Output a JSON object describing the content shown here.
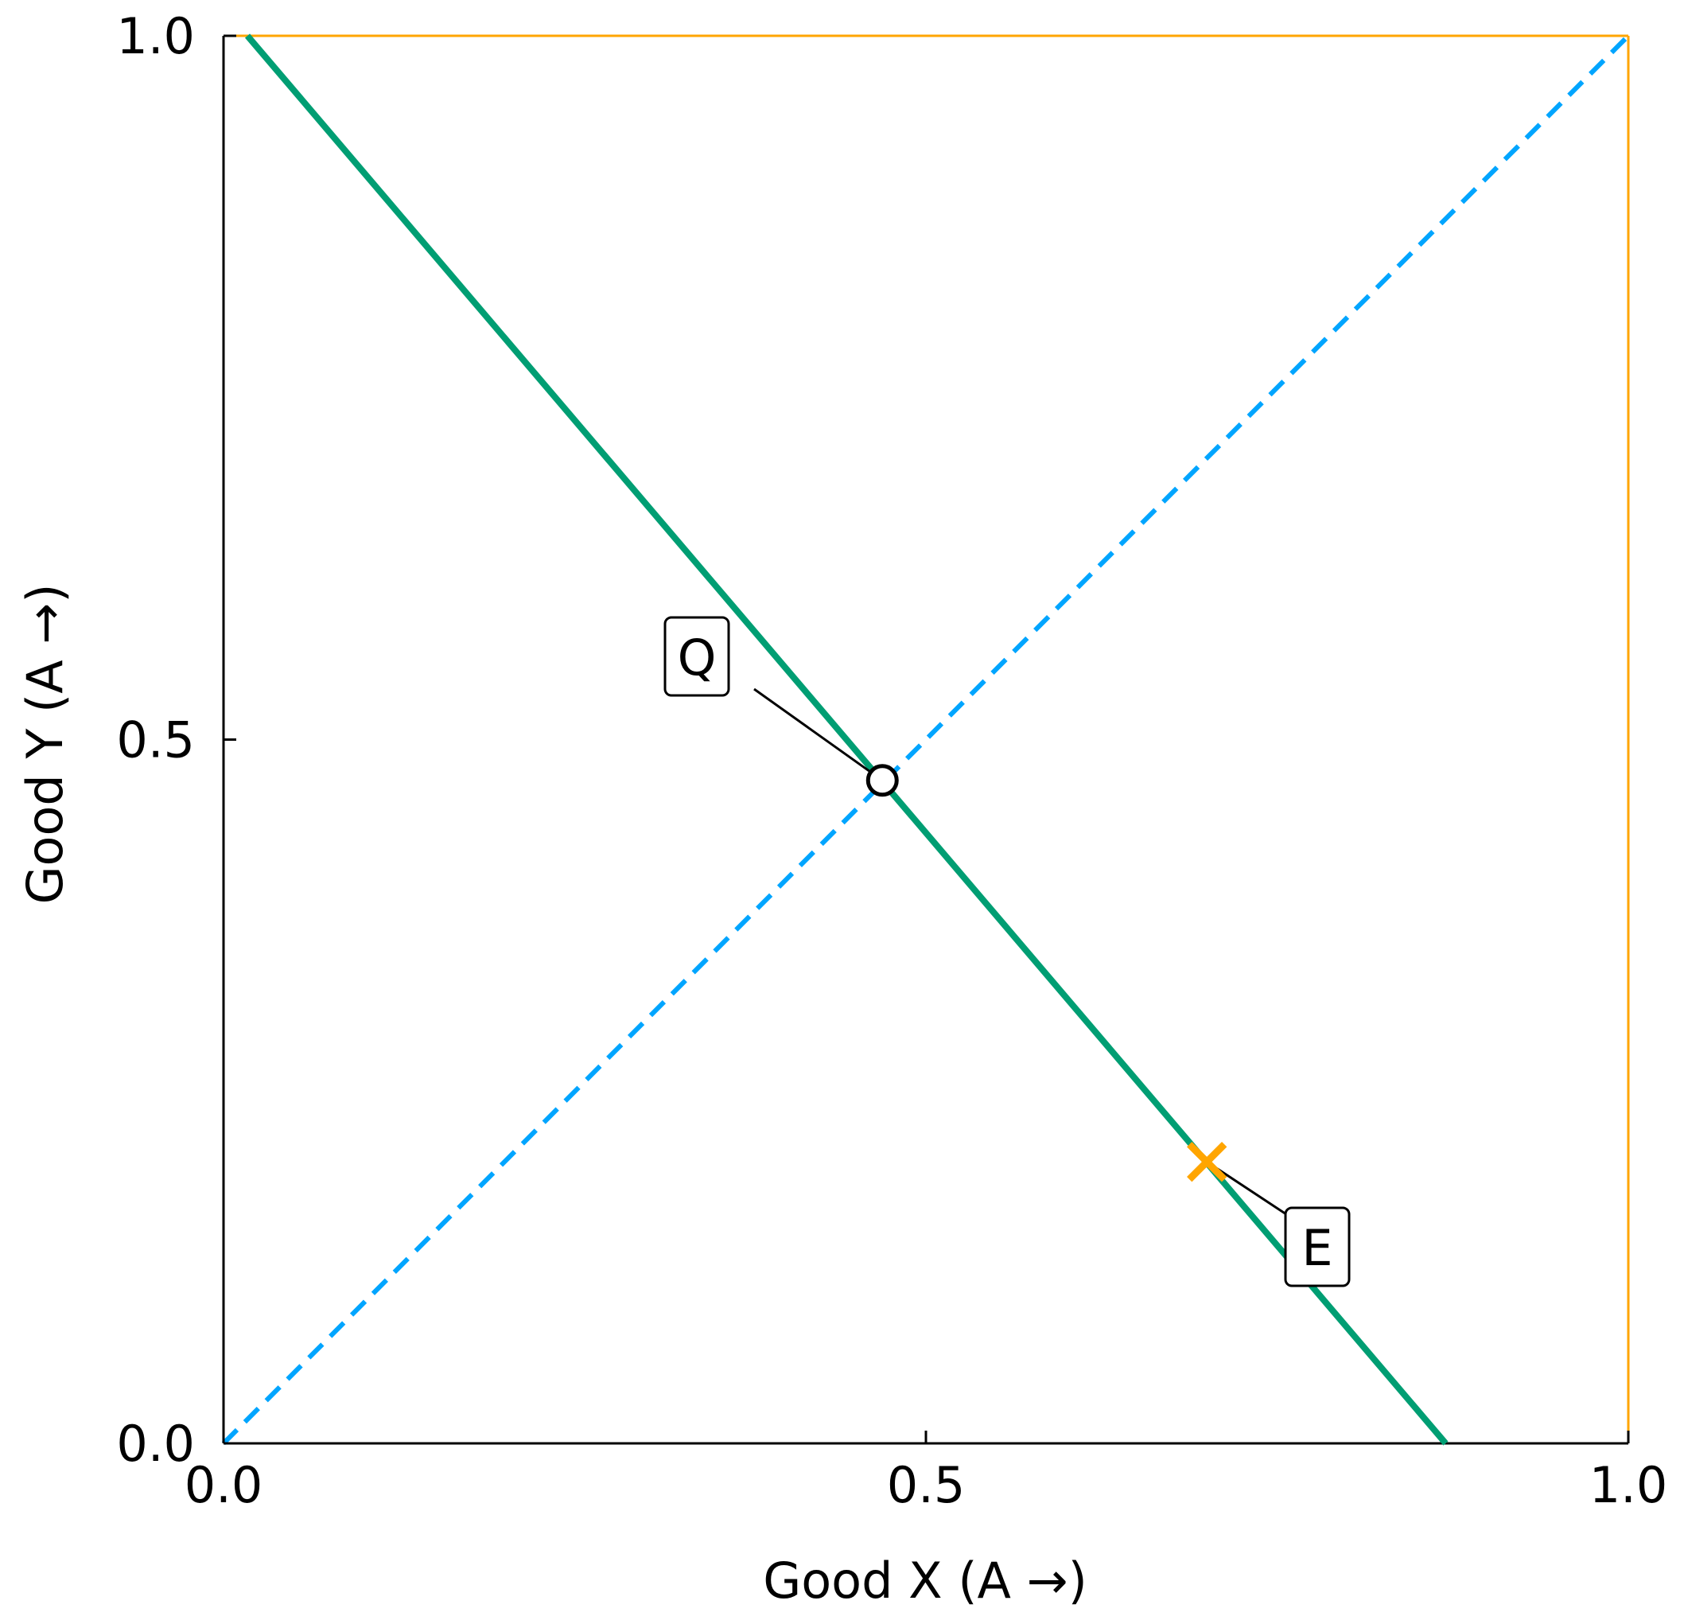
{
  "chart_data": {
    "type": "line",
    "xlabel": "Good X (A →)",
    "ylabel": "Good Y (A →)",
    "xlim": [
      0,
      1
    ],
    "ylim": [
      0,
      1
    ],
    "x_ticks": [
      {
        "value": 0.0,
        "label": "0.0"
      },
      {
        "value": 0.5,
        "label": "0.5"
      },
      {
        "value": 1.0,
        "label": "1.0"
      }
    ],
    "y_ticks": [
      {
        "value": 0.0,
        "label": "0.0"
      },
      {
        "value": 0.5,
        "label": "0.5"
      },
      {
        "value": 1.0,
        "label": "1.0"
      }
    ],
    "grid": false,
    "legend": "none",
    "series": [
      {
        "style": "solid",
        "color": "#009e73",
        "x": [
          0.017,
          0.87
        ],
        "y": [
          1.0,
          0.0
        ]
      },
      {
        "style": "dashed",
        "color": "#00a5ff",
        "x": [
          0.0,
          1.0
        ],
        "y": [
          0.0,
          1.0
        ]
      }
    ],
    "box": {
      "color": "#ffa500",
      "x": [
        0.0,
        1.0
      ],
      "y": [
        0.0,
        1.0
      ]
    },
    "points": [
      {
        "label": "Q",
        "marker": "circle",
        "color": "#000000",
        "x": 0.469,
        "y": 0.471
      },
      {
        "label": "E",
        "marker": "x",
        "color": "#ffa500",
        "x": 0.7,
        "y": 0.2
      }
    ]
  }
}
